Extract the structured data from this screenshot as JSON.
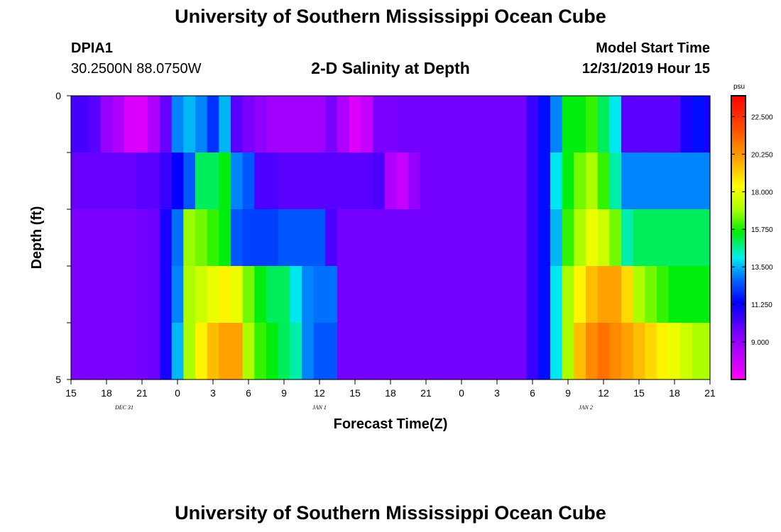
{
  "header": {
    "title_top": "University of Southern Mississippi Ocean Cube",
    "title_bottom": "University of Southern Mississippi Ocean Cube",
    "station_id": "DPIA1",
    "station_coords": "30.2500N 88.0750W",
    "plot_title": "2-D Salinity at Depth",
    "model_start_label": "Model Start Time",
    "model_start_time": "12/31/2019 Hour 15"
  },
  "chart_data": {
    "type": "heatmap",
    "title": "2-D Salinity at Depth",
    "xlabel": "Forecast Time(Z)",
    "ylabel": "Depth (ft)",
    "x_start_hour": 0,
    "x_step_hours": 1,
    "x_range_hours": [
      0,
      54
    ],
    "x_ticks": [
      {
        "hour": 0,
        "label": "15"
      },
      {
        "hour": 3,
        "label": "18"
      },
      {
        "hour": 6,
        "label": "21"
      },
      {
        "hour": 9,
        "label": "0"
      },
      {
        "hour": 12,
        "label": "3"
      },
      {
        "hour": 15,
        "label": "6"
      },
      {
        "hour": 18,
        "label": "9"
      },
      {
        "hour": 21,
        "label": "12"
      },
      {
        "hour": 24,
        "label": "15"
      },
      {
        "hour": 27,
        "label": "18"
      },
      {
        "hour": 30,
        "label": "21"
      },
      {
        "hour": 33,
        "label": "0"
      },
      {
        "hour": 36,
        "label": "3"
      },
      {
        "hour": 39,
        "label": "6"
      },
      {
        "hour": 42,
        "label": "9"
      },
      {
        "hour": 45,
        "label": "12"
      },
      {
        "hour": 48,
        "label": "15"
      },
      {
        "hour": 51,
        "label": "18"
      },
      {
        "hour": 54,
        "label": "21"
      }
    ],
    "date_labels": [
      {
        "hour": 4.5,
        "label": "DEC 31"
      },
      {
        "hour": 21,
        "label": "JAN 1"
      },
      {
        "hour": 43.5,
        "label": "JAN 2"
      }
    ],
    "y_range": [
      0,
      5
    ],
    "y_ticks": [
      {
        "value": 0,
        "label": "0"
      },
      {
        "value": 1,
        "label": ""
      },
      {
        "value": 2,
        "label": ""
      },
      {
        "value": 3,
        "label": ""
      },
      {
        "value": 4,
        "label": ""
      },
      {
        "value": 5,
        "label": "5"
      }
    ],
    "depth_rows": [
      0,
      1,
      2,
      3,
      4
    ],
    "values": [
      [
        10.3,
        10.3,
        10.0,
        9.0,
        8.5,
        7.5,
        7.5,
        8.5,
        9.8,
        13.0,
        13.5,
        13.0,
        12.0,
        13.5,
        10.0,
        9.5,
        9.2,
        8.8,
        8.7,
        8.7,
        8.7,
        8.8,
        9.5,
        8.5,
        7.5,
        8.0,
        9.5,
        9.5,
        9.6,
        9.6,
        9.6,
        9.6,
        9.6,
        9.6,
        9.6,
        9.6,
        9.6,
        9.6,
        9.6,
        10.5,
        11.5,
        13.0,
        15.5,
        15.5,
        16.0,
        15.0,
        14.0,
        10.0,
        10.0,
        10.0,
        10.0,
        10.0,
        11.0,
        11.5,
        11.0
      ],
      [
        9.8,
        9.8,
        9.8,
        9.8,
        9.8,
        9.8,
        10.0,
        10.0,
        10.5,
        11.3,
        12.5,
        15.0,
        15.0,
        15.5,
        13.0,
        12.5,
        10.2,
        10.2,
        10.0,
        10.0,
        10.0,
        10.0,
        10.0,
        10.0,
        10.0,
        10.0,
        10.2,
        8.5,
        8.0,
        9.0,
        9.6,
        9.6,
        9.6,
        9.6,
        9.6,
        9.6,
        9.6,
        9.6,
        9.6,
        10.5,
        11.5,
        14.0,
        15.5,
        16.5,
        17.0,
        16.0,
        14.5,
        13.0,
        13.0,
        13.0,
        13.0,
        13.0,
        13.0,
        13.0,
        13.0
      ],
      [
        9.5,
        9.5,
        9.5,
        9.5,
        9.5,
        9.5,
        9.6,
        9.7,
        11.0,
        12.8,
        16.8,
        16.5,
        16.0,
        15.5,
        12.5,
        12.2,
        12.2,
        12.2,
        12.5,
        12.5,
        12.5,
        12.5,
        10.2,
        9.6,
        9.6,
        9.6,
        9.6,
        9.6,
        9.6,
        9.6,
        9.6,
        9.6,
        9.6,
        9.6,
        9.6,
        9.6,
        9.6,
        9.6,
        9.6,
        10.5,
        11.5,
        13.5,
        16.0,
        17.0,
        18.0,
        17.5,
        16.5,
        14.5,
        15.0,
        15.0,
        15.0,
        15.0,
        15.0,
        15.0,
        15.0
      ],
      [
        9.5,
        9.5,
        9.5,
        9.5,
        9.5,
        9.5,
        9.6,
        9.7,
        11.0,
        13.0,
        17.0,
        17.5,
        18.0,
        18.5,
        18.0,
        16.5,
        15.5,
        15.0,
        15.0,
        14.0,
        13.0,
        12.8,
        12.8,
        9.6,
        9.6,
        9.6,
        9.6,
        9.6,
        9.6,
        9.6,
        9.6,
        9.6,
        9.6,
        9.6,
        9.6,
        9.6,
        9.6,
        9.6,
        9.6,
        10.5,
        11.5,
        14.0,
        17.0,
        18.5,
        19.5,
        20.0,
        20.0,
        19.0,
        17.0,
        16.5,
        16.0,
        15.5,
        15.5,
        15.5,
        15.5
      ],
      [
        9.5,
        9.5,
        9.5,
        9.5,
        9.5,
        9.5,
        9.6,
        9.7,
        11.0,
        13.5,
        17.0,
        18.5,
        19.5,
        20.0,
        20.0,
        17.0,
        16.0,
        15.5,
        15.0,
        14.5,
        13.0,
        12.5,
        12.5,
        9.6,
        9.6,
        9.6,
        9.6,
        9.6,
        9.6,
        9.6,
        9.6,
        9.6,
        9.6,
        9.6,
        9.6,
        9.6,
        9.6,
        9.6,
        9.6,
        10.5,
        11.5,
        14.0,
        17.0,
        19.5,
        20.5,
        21.0,
        20.5,
        20.0,
        19.5,
        19.0,
        18.5,
        18.0,
        17.5,
        17.0,
        17.0
      ]
    ],
    "colorbar": {
      "unit": "psu",
      "min": 6.75,
      "max": 23.75,
      "ticks": [
        9.0,
        11.25,
        13.5,
        15.75,
        18.0,
        20.25,
        22.5
      ],
      "tick_labels": [
        "9.000",
        "11.250",
        "13.500",
        "15.750",
        "18.000",
        "20.250",
        "22.500"
      ]
    }
  }
}
